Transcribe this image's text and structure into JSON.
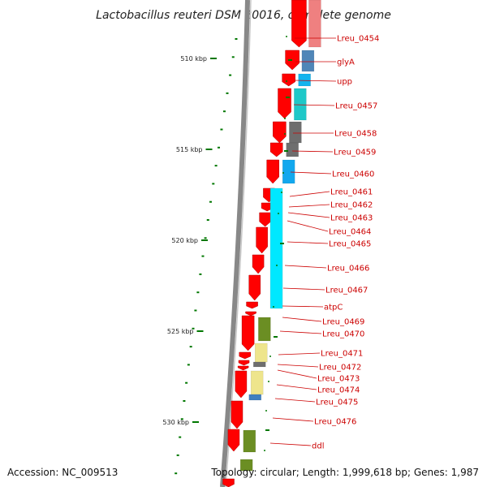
{
  "title": "Lactobacillus reuteri DSM 20016, complete genome",
  "footer": {
    "accession": "Accession: NC_009513",
    "topology": "Topology: circular; Length: 1,999,618 bp; Genes: 1,987"
  },
  "colors": {
    "forward_gene": "#ff0000",
    "backbone": "#888888",
    "tick": "#007700",
    "label": "#cc0000"
  },
  "scale_ticks": [
    "510 kbp",
    "515 kbp",
    "520 kbp",
    "525 kbp",
    "530 kbp"
  ],
  "genes": [
    {
      "name": "Lreu_0454",
      "category_color": "#ef8080"
    },
    {
      "name": "glyA",
      "category_color": "#4f86b8"
    },
    {
      "name": "upp",
      "category_color": "#12b4ee"
    },
    {
      "name": "Lreu_0457",
      "category_color": "#1ec8c8"
    },
    {
      "name": "Lreu_0458",
      "category_color": "#6e6e6e"
    },
    {
      "name": "Lreu_0459",
      "category_color": "#6e6e6e"
    },
    {
      "name": "Lreu_0460",
      "category_color": "#12a8ee"
    },
    {
      "name": "Lreu_0461",
      "category_color": "#00e8ff"
    },
    {
      "name": "Lreu_0462",
      "category_color": "#00e8ff"
    },
    {
      "name": "Lreu_0463",
      "category_color": "#00e8ff"
    },
    {
      "name": "Lreu_0464",
      "category_color": "#00e8ff"
    },
    {
      "name": "Lreu_0465",
      "category_color": "#00e8ff"
    },
    {
      "name": "Lreu_0466",
      "category_color": "#00e8ff"
    },
    {
      "name": "Lreu_0467",
      "category_color": "#00e8ff"
    },
    {
      "name": "atpC",
      "category_color": "#00e8ff"
    },
    {
      "name": "Lreu_0469",
      "category_color": "#6b8e23"
    },
    {
      "name": "Lreu_0470",
      "category_color": "#6b8e23"
    },
    {
      "name": "Lreu_0471",
      "category_color": "#eee58c"
    },
    {
      "name": "Lreu_0472",
      "category_color": "#6e6e6e"
    },
    {
      "name": "Lreu_0473",
      "category_color": "#eee58c"
    },
    {
      "name": "Lreu_0474",
      "category_color": "#eee58c"
    },
    {
      "name": "Lreu_0475",
      "category_color": "#3f7fbf"
    },
    {
      "name": "Lreu_0476",
      "category_color": "#ffffff"
    },
    {
      "name": "ddl",
      "category_color": "#6b8e23"
    }
  ]
}
